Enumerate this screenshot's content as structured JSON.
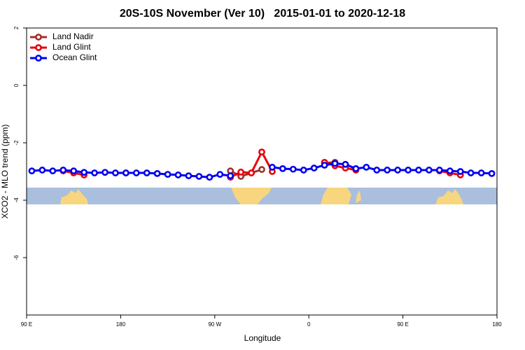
{
  "chart_data": {
    "type": "line",
    "title": "20S-10S November (Ver 10)   2015-01-01 to 2020-12-18",
    "x_label": "Longitude",
    "y_label": "XCO2 - MLO trend (ppm)",
    "x": [
      95,
      105,
      115,
      125,
      135,
      145,
      155,
      165,
      175,
      185,
      195,
      205,
      215,
      225,
      235,
      245,
      255,
      265,
      275,
      285,
      295,
      305,
      315,
      325,
      335,
      345,
      355,
      365,
      375,
      385,
      395,
      405,
      415,
      425,
      435,
      445,
      455,
      465,
      475,
      485,
      495,
      505,
      515,
      525,
      535
    ],
    "series": [
      {
        "name": "Land Nadir",
        "color": "#a0302a",
        "values": [
          null,
          null,
          null,
          null,
          null,
          null,
          null,
          null,
          null,
          null,
          null,
          null,
          null,
          null,
          null,
          null,
          null,
          null,
          null,
          -2.98,
          -3.17,
          -3.05,
          -2.93,
          null,
          null,
          null,
          null,
          null,
          -2.7,
          -2.68,
          null,
          null,
          null,
          null,
          null,
          null,
          null,
          null,
          null,
          null,
          null,
          null,
          null,
          null,
          null
        ]
      },
      {
        "name": "Land Glint",
        "color": "#e8000b",
        "values": [
          null,
          null,
          null,
          -2.98,
          -3.05,
          -3.12,
          null,
          null,
          null,
          -3.05,
          null,
          null,
          null,
          null,
          null,
          null,
          null,
          null,
          null,
          -3.2,
          -3.02,
          -3.05,
          -2.32,
          -3.0,
          null,
          null,
          null,
          null,
          -2.68,
          -2.8,
          -2.88,
          -2.95,
          null,
          null,
          null,
          null,
          null,
          null,
          null,
          -2.98,
          -3.05,
          -3.12,
          null,
          null,
          null
        ]
      },
      {
        "name": "Ocean Glint",
        "color": "#0000ee",
        "values": [
          -2.98,
          -2.95,
          -2.98,
          -2.95,
          -2.98,
          -3.03,
          -3.05,
          -3.03,
          -3.05,
          -3.05,
          -3.05,
          -3.05,
          -3.07,
          -3.1,
          -3.12,
          -3.15,
          -3.17,
          -3.2,
          -3.1,
          -3.15,
          null,
          null,
          null,
          -2.85,
          -2.9,
          -2.92,
          -2.95,
          -2.88,
          -2.78,
          -2.72,
          -2.75,
          -2.9,
          -2.85,
          -2.95,
          -2.95,
          -2.95,
          -2.95,
          -2.95,
          -2.95,
          -2.95,
          -2.98,
          -3.0,
          -3.05,
          -3.05,
          -3.07
        ]
      }
    ],
    "xlim": [
      90,
      540
    ],
    "xticks": [
      {
        "value": 90,
        "label": "90 E"
      },
      180,
      {
        "value": 270,
        "label": "90 W"
      },
      {
        "value": 360,
        "label": "0"
      },
      {
        "value": 450,
        "label": "90 E"
      },
      {
        "value": 540,
        "label": "180"
      }
    ],
    "ylim": [
      -8,
      2
    ],
    "yticks": [
      2,
      0,
      -2,
      -4,
      -6
    ],
    "legend": "top-left"
  }
}
